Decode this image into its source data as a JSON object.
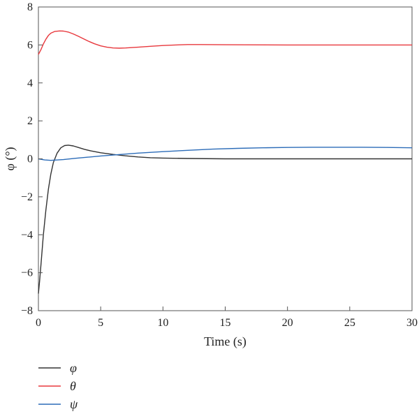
{
  "chart_data": {
    "type": "line",
    "xlabel": "Time (s)",
    "ylabel": "φ (°)",
    "xlim": [
      0,
      30
    ],
    "ylim": [
      -8,
      8
    ],
    "xticks": [
      0,
      5,
      10,
      15,
      20,
      25,
      30
    ],
    "yticks": [
      -8,
      -6,
      -4,
      -2,
      0,
      2,
      4,
      6,
      8
    ],
    "grid": false,
    "legend_position": "bottom-left",
    "series": [
      {
        "name": "φ",
        "color": "#333333",
        "x": [
          0,
          0.1,
          0.2,
          0.4,
          0.6,
          0.8,
          1.0,
          1.2,
          1.5,
          1.8,
          2.1,
          2.4,
          2.8,
          3.2,
          3.7,
          4.2,
          5,
          6,
          7,
          8,
          9,
          10,
          12,
          15,
          20,
          25,
          30
        ],
        "y": [
          -7.1,
          -6.4,
          -5.6,
          -4.0,
          -2.7,
          -1.6,
          -0.8,
          -0.2,
          0.3,
          0.58,
          0.7,
          0.72,
          0.68,
          0.6,
          0.5,
          0.42,
          0.32,
          0.23,
          0.16,
          0.1,
          0.06,
          0.04,
          0.02,
          0.0,
          0.0,
          0.0,
          0.0
        ]
      },
      {
        "name": "θ",
        "color": "#e8383d",
        "x": [
          0,
          0.2,
          0.4,
          0.6,
          0.8,
          1.0,
          1.3,
          1.7,
          2.0,
          2.4,
          2.8,
          3.2,
          3.6,
          4.0,
          4.5,
          5.0,
          5.5,
          6.0,
          6.5,
          7.0,
          8.0,
          9.0,
          10,
          11,
          12,
          13,
          15,
          20,
          25,
          30
        ],
        "y": [
          5.5,
          5.75,
          6.05,
          6.3,
          6.5,
          6.62,
          6.71,
          6.74,
          6.73,
          6.68,
          6.58,
          6.46,
          6.33,
          6.2,
          6.06,
          5.95,
          5.88,
          5.84,
          5.83,
          5.84,
          5.88,
          5.93,
          5.97,
          6.0,
          6.02,
          6.02,
          6.01,
          6.0,
          6.0,
          6.0
        ]
      },
      {
        "name": "ψ",
        "color": "#2c6cb8",
        "x": [
          0,
          0.5,
          1,
          2,
          3,
          4,
          5,
          6,
          7,
          8,
          10,
          12,
          14,
          16,
          18,
          20,
          22,
          24,
          26,
          28,
          30
        ],
        "y": [
          0.0,
          -0.06,
          -0.08,
          -0.04,
          0.03,
          0.09,
          0.15,
          0.2,
          0.25,
          0.3,
          0.38,
          0.45,
          0.51,
          0.55,
          0.58,
          0.6,
          0.61,
          0.61,
          0.61,
          0.6,
          0.58
        ]
      }
    ]
  }
}
